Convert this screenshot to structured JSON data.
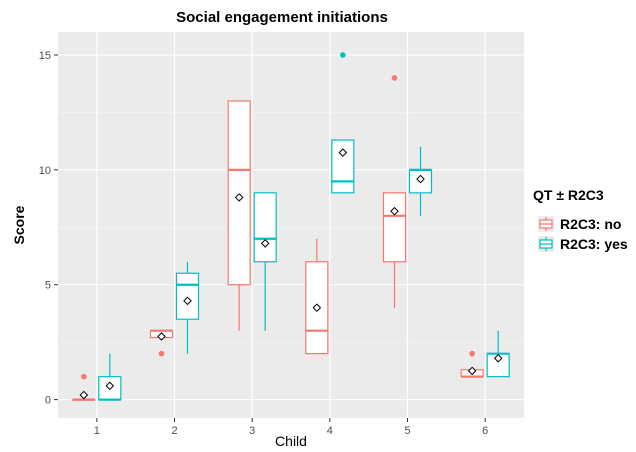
{
  "chart_data": {
    "type": "boxplot",
    "title": "Social engagement initiations",
    "xlabel": "Child",
    "ylabel": "Score",
    "categories": [
      "1",
      "2",
      "3",
      "4",
      "5",
      "6"
    ],
    "ylim": [
      -0.8,
      16
    ],
    "yticks": [
      0,
      5,
      10,
      15
    ],
    "grid": true,
    "legend": {
      "title": "QT ± R2C3",
      "placement": "right"
    },
    "series": [
      {
        "name": "R2C3: no",
        "color": "#f8766d",
        "boxes": [
          {
            "category": "1",
            "whisker_low": 0,
            "q1": 0,
            "median": 0,
            "q3": 0,
            "whisker_high": 0,
            "mean": 0.2,
            "outliers": [
              1
            ]
          },
          {
            "category": "2",
            "whisker_low": 2.7,
            "q1": 2.7,
            "median": 3,
            "q3": 3,
            "whisker_high": 3,
            "mean": 2.75,
            "outliers": [
              2
            ]
          },
          {
            "category": "3",
            "whisker_low": 3,
            "q1": 5,
            "median": 10,
            "q3": 13,
            "whisker_high": 13,
            "mean": 8.8,
            "outliers": []
          },
          {
            "category": "4",
            "whisker_low": 2,
            "q1": 2,
            "median": 3,
            "q3": 6,
            "whisker_high": 7,
            "mean": 4,
            "outliers": []
          },
          {
            "category": "5",
            "whisker_low": 4,
            "q1": 6,
            "median": 8,
            "q3": 9,
            "whisker_high": 9,
            "mean": 8.2,
            "outliers": [
              14
            ]
          },
          {
            "category": "6",
            "whisker_low": 1,
            "q1": 1,
            "median": 1,
            "q3": 1.3,
            "whisker_high": 1.3,
            "mean": 1.25,
            "outliers": [
              2
            ]
          }
        ]
      },
      {
        "name": "R2C3: yes",
        "color": "#00bfc4",
        "boxes": [
          {
            "category": "1",
            "whisker_low": 0,
            "q1": 0,
            "median": 0,
            "q3": 1,
            "whisker_high": 2,
            "mean": 0.6,
            "outliers": []
          },
          {
            "category": "2",
            "whisker_low": 2,
            "q1": 3.5,
            "median": 5,
            "q3": 5.5,
            "whisker_high": 6,
            "mean": 4.3,
            "outliers": []
          },
          {
            "category": "3",
            "whisker_low": 3,
            "q1": 6,
            "median": 7,
            "q3": 9,
            "whisker_high": 9,
            "mean": 6.8,
            "outliers": []
          },
          {
            "category": "4",
            "whisker_low": 9,
            "q1": 9,
            "median": 9.5,
            "q3": 11.3,
            "whisker_high": 11.3,
            "mean": 10.75,
            "outliers": [
              15
            ]
          },
          {
            "category": "5",
            "whisker_low": 8,
            "q1": 9,
            "median": 10,
            "q3": 10,
            "whisker_high": 11,
            "mean": 9.6,
            "outliers": []
          },
          {
            "category": "6",
            "whisker_low": 1,
            "q1": 1,
            "median": 2,
            "q3": 2,
            "whisker_high": 3,
            "mean": 1.8,
            "outliers": []
          }
        ]
      }
    ]
  }
}
